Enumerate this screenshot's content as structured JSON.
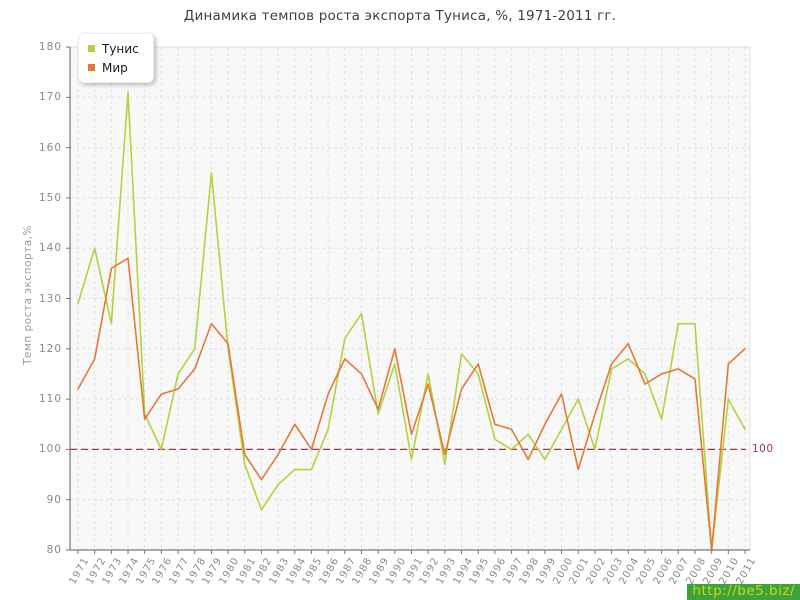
{
  "chart_data": {
    "type": "line",
    "title": "Динамика темпов роста экспорта Туниса, %, 1971-2011 гг.",
    "ylabel": "Темп роста экспорта,%",
    "xlabel": "",
    "x": [
      1971,
      1972,
      1973,
      1974,
      1975,
      1976,
      1977,
      1978,
      1979,
      1980,
      1981,
      1982,
      1983,
      1984,
      1985,
      1986,
      1987,
      1988,
      1989,
      1990,
      1991,
      1992,
      1993,
      1994,
      1995,
      1996,
      1997,
      1998,
      1999,
      2000,
      2001,
      2002,
      2003,
      2004,
      2005,
      2006,
      2007,
      2008,
      2009,
      2010,
      2011
    ],
    "series": [
      {
        "name": "Тунис",
        "color": "#b3d23f",
        "values": [
          129,
          140,
          125,
          171,
          107,
          100,
          115,
          120,
          155,
          120,
          97,
          88,
          93,
          96,
          96,
          104,
          122,
          127,
          107,
          117,
          98,
          115,
          97,
          119,
          115,
          102,
          100,
          103,
          98,
          104,
          110,
          100,
          116,
          118,
          115,
          106,
          125,
          125,
          80,
          110,
          104
        ]
      },
      {
        "name": "Мир",
        "color": "#e5793a",
        "values": [
          112,
          118,
          136,
          138,
          106,
          111,
          112,
          116,
          125,
          121,
          99,
          94,
          99,
          105,
          100,
          111,
          118,
          115,
          108,
          120,
          103,
          113,
          99,
          112,
          117,
          105,
          104,
          98,
          105,
          111,
          96,
          107,
          117,
          121,
          113,
          115,
          116,
          114,
          80,
          117,
          120
        ]
      }
    ],
    "ylim": [
      80,
      180
    ],
    "yticks": [
      80,
      90,
      100,
      110,
      120,
      130,
      140,
      150,
      160,
      170,
      180
    ],
    "grid": true,
    "legend_position": "top-left",
    "reference_line": {
      "value": 100,
      "label": "100",
      "color": "#993a4d"
    }
  },
  "watermark": {
    "text": "http://be5.biz/",
    "bg": "#3da23d",
    "fg": "#ccd80e"
  }
}
